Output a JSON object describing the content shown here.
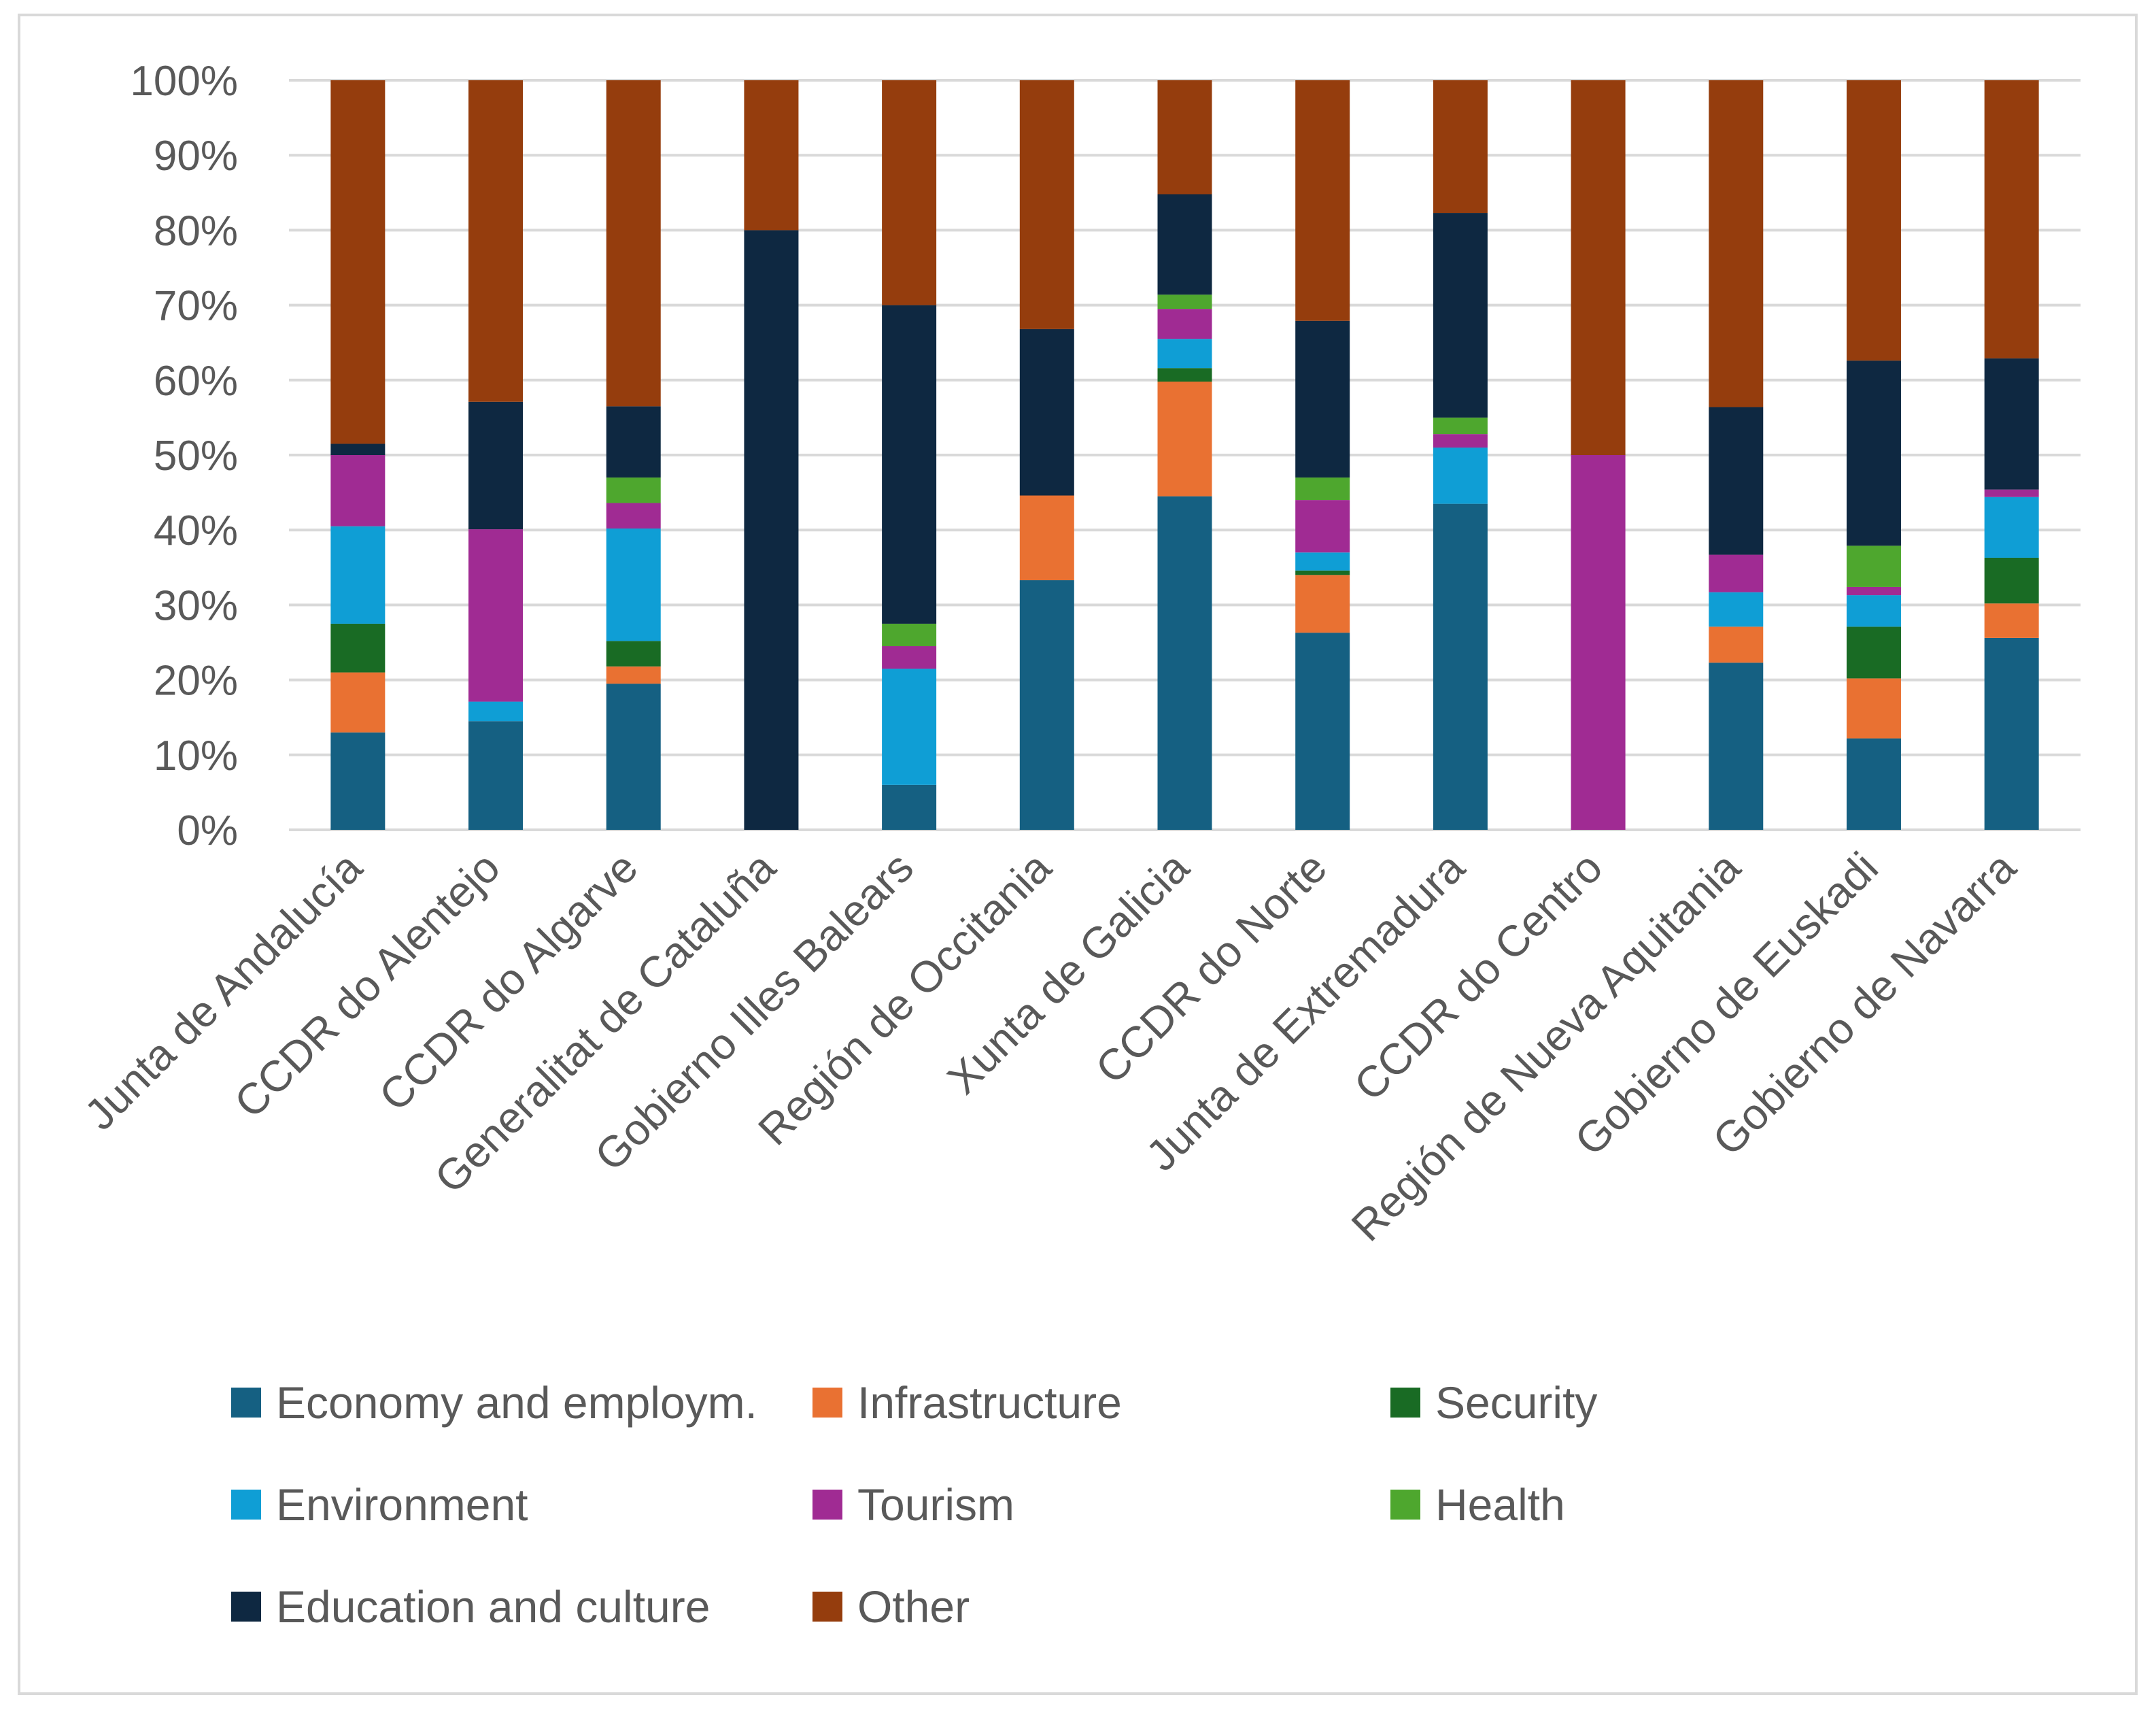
{
  "chart_data": {
    "type": "bar",
    "stacked": true,
    "normalized": true,
    "title": "",
    "xlabel": "",
    "ylabel": "",
    "ylim": [
      0,
      100
    ],
    "yticks": [
      "0%",
      "10%",
      "20%",
      "30%",
      "40%",
      "50%",
      "60%",
      "70%",
      "80%",
      "90%",
      "100%"
    ],
    "grid": true,
    "legend_position": "bottom",
    "categories": [
      "Junta de Andalucía",
      "CCDR do Alentejo",
      "CCDR do Algarve",
      "Generalitat de Cataluña",
      "Gobierno Illes Balears",
      "Región de Occitania",
      "Xunta de Galicia",
      "CCDR do Norte",
      "Junta de Extremadura",
      "CCDR do Centro",
      "Región de Nueva Aquitania",
      "Gobierno de Euskadi",
      "Gobierno de Navarra"
    ],
    "series": [
      {
        "name": "Economy and employm.",
        "color": "#156082",
        "values": [
          13,
          14.5,
          19.5,
          0,
          6,
          33.3,
          44.5,
          26.3,
          43.5,
          0,
          22.3,
          12.2,
          25.6
        ]
      },
      {
        "name": "Infrastructure",
        "color": "#e97132",
        "values": [
          8,
          0,
          2.3,
          0,
          0,
          11.3,
          15.3,
          7.7,
          0,
          0,
          4.8,
          8.0,
          4.6
        ]
      },
      {
        "name": "Security",
        "color": "#196b24",
        "values": [
          6.5,
          0,
          3.4,
          0,
          0,
          0,
          1.8,
          0.6,
          0,
          0,
          0,
          6.9,
          6.1
        ]
      },
      {
        "name": "Environment",
        "color": "#0f9ed5",
        "values": [
          13,
          2.6,
          15,
          0,
          15.5,
          0,
          3.9,
          2.4,
          7.5,
          0,
          4.6,
          4.2,
          8.1
        ]
      },
      {
        "name": "Tourism",
        "color": "#a02b93",
        "values": [
          9.5,
          23,
          3.4,
          0,
          3,
          0,
          4.0,
          7.0,
          1.8,
          50,
          5.0,
          1.1,
          1.0
        ]
      },
      {
        "name": "Health",
        "color": "#4ea72e",
        "values": [
          0,
          0,
          3.4,
          0,
          3,
          0,
          1.9,
          3.0,
          2.2,
          0,
          0,
          5.5,
          0
        ]
      },
      {
        "name": "Education and culture",
        "color": "#0e2841",
        "values": [
          1.5,
          17,
          9.5,
          80,
          42.5,
          22.2,
          13.4,
          20.9,
          27.3,
          0,
          19.7,
          24.7,
          17.5
        ]
      },
      {
        "name": "Other",
        "color": "#953d0d",
        "values": [
          48.5,
          42.9,
          43.5,
          20,
          30,
          33.2,
          15.2,
          32.1,
          17.7,
          50,
          43.6,
          37.4,
          37.1
        ]
      }
    ]
  },
  "legend": {
    "items": [
      "Economy and employm.",
      "Infrastructure",
      "Security",
      "Environment",
      "Tourism",
      "Health",
      "Education and culture",
      "Other"
    ]
  }
}
